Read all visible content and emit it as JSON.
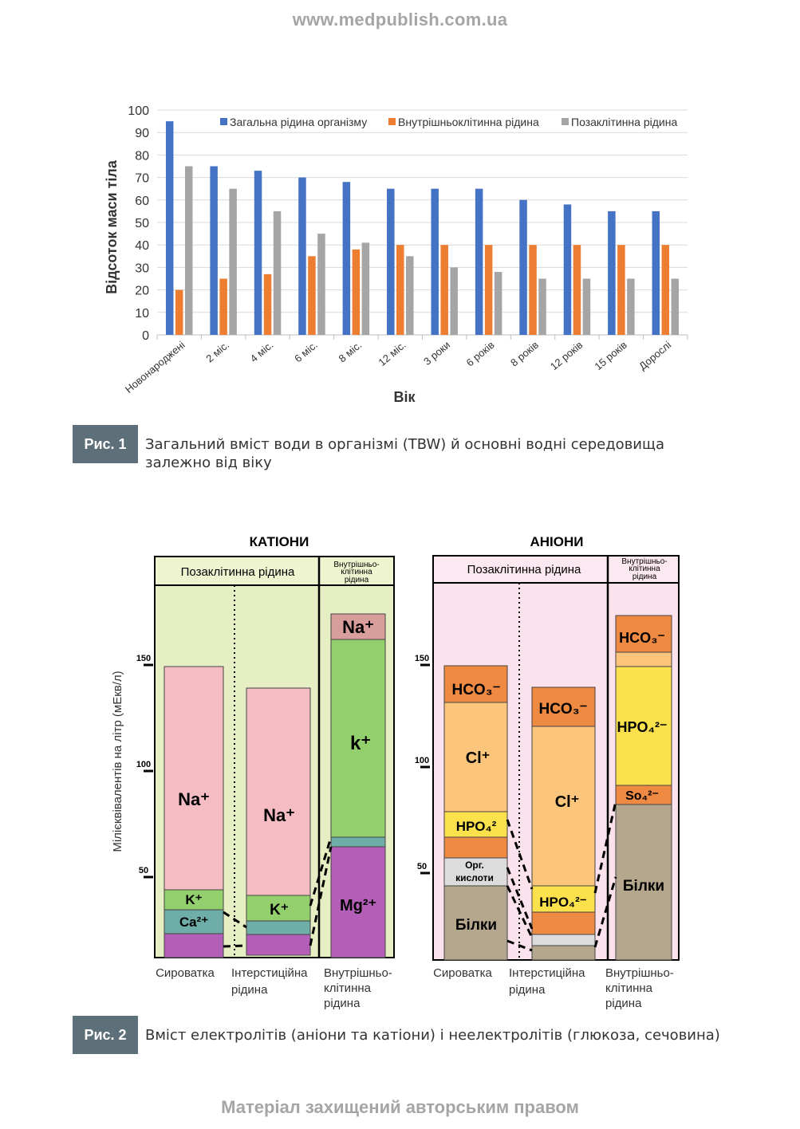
{
  "page": {
    "header_url": "www.medpublish.com.ua",
    "footer": "Матеріал захищений авторським правом"
  },
  "figure1": {
    "badge": "Рис. 1",
    "caption": "Загальний вміст води в організмі (TBW) й основні водні середовища залежно від віку"
  },
  "figure2": {
    "badge": "Рис. 2",
    "caption": "Вміст електролітів (аніони та катіони) і неелектролітів (глюкоза, сечовина)"
  },
  "chart_data": [
    {
      "type": "bar",
      "title": "",
      "xlabel": "Вік",
      "ylabel": "Відсоток маси тіла",
      "ylim": [
        0,
        100
      ],
      "yticks": [
        0,
        10,
        20,
        30,
        40,
        50,
        60,
        70,
        80,
        90,
        100
      ],
      "grid": true,
      "legend_position": "top",
      "categories": [
        "Новонароджені",
        "2 міс.",
        "4 міс.",
        "6 міс.",
        "8 міс.",
        "12 міс.",
        "3 роки",
        "6 років",
        "8 років",
        "12 років",
        "15 років",
        "Дорослі"
      ],
      "series": [
        {
          "name": "Загальна рідина організму",
          "color": "#4472c4",
          "values": [
            95,
            75,
            73,
            70,
            68,
            65,
            65,
            65,
            60,
            58,
            55,
            55
          ]
        },
        {
          "name": "Внутрішньоклітинна рідина",
          "color": "#ed7d31",
          "values": [
            20,
            25,
            27,
            35,
            38,
            40,
            40,
            40,
            40,
            40,
            40,
            40
          ]
        },
        {
          "name": "Позаклітинна рідина",
          "color": "#a5a5a5",
          "values": [
            75,
            65,
            55,
            45,
            41,
            35,
            30,
            28,
            25,
            25,
            25,
            25
          ]
        }
      ]
    }
  ],
  "electrolytes": {
    "ylabel": "Мілієквівалентів на літр (мЕкв/л)",
    "yticks": [
      "50",
      "100",
      "150"
    ],
    "cations": {
      "title": "КАТІОНИ",
      "header_ecf": "Позаклітинна рідина",
      "header_icf": [
        "Внутрішньо-",
        "клітинна",
        "рідина"
      ],
      "colors": {
        "panel": "#e6eec3",
        "header": "#eef4d0",
        "na": "#f5bcc4",
        "k": "#93cf6d",
        "ca": "#6fada8",
        "mg": "#b35fb8",
        "icf_na": "#d79e9c"
      },
      "serum": {
        "na": "Na⁺",
        "k": "K⁺",
        "ca": "Ca²⁺"
      },
      "interstitial": {
        "na": "Na⁺",
        "k": "K⁺"
      },
      "intracellular": {
        "na": "Na⁺",
        "k": "k⁺",
        "mg": "Mg²⁺"
      }
    },
    "anions": {
      "title": "АНІОНИ",
      "header_ecf": "Позаклітинна рідина",
      "header_icf": [
        "Внутрішньо-",
        "клітинна",
        "рідина"
      ],
      "colors": {
        "panel": "#fbe2ec",
        "header": "#fce8f0",
        "hco3": "#ef8a43",
        "cl": "#fbc57c",
        "hpo4": "#fbe24c",
        "org": "#dcdcdc",
        "protein": "#b5a78e",
        "so4": "#ef8a43"
      },
      "serum": {
        "hco3": "HCO₃⁻",
        "cl": "Cl⁺",
        "hpo4": "HPO₄²",
        "org": [
          "Орг.",
          "кислоти"
        ],
        "protein": "Білки"
      },
      "interstitial": {
        "hco3": "HCO₃⁻",
        "cl": "Cl⁺",
        "hpo4": "HPO₄²⁻"
      },
      "intracellular": {
        "hco3": "HCO₃⁻",
        "hpo4": "HPO₄²⁻",
        "so4": "So₄²⁻",
        "protein": "Білки"
      }
    },
    "column_labels": {
      "serum": "Сироватка",
      "interstitial": [
        "Інтерстиційна",
        "рідина"
      ],
      "intracellular": [
        "Внутрішньо-",
        "клітинна",
        "рідина"
      ]
    }
  }
}
